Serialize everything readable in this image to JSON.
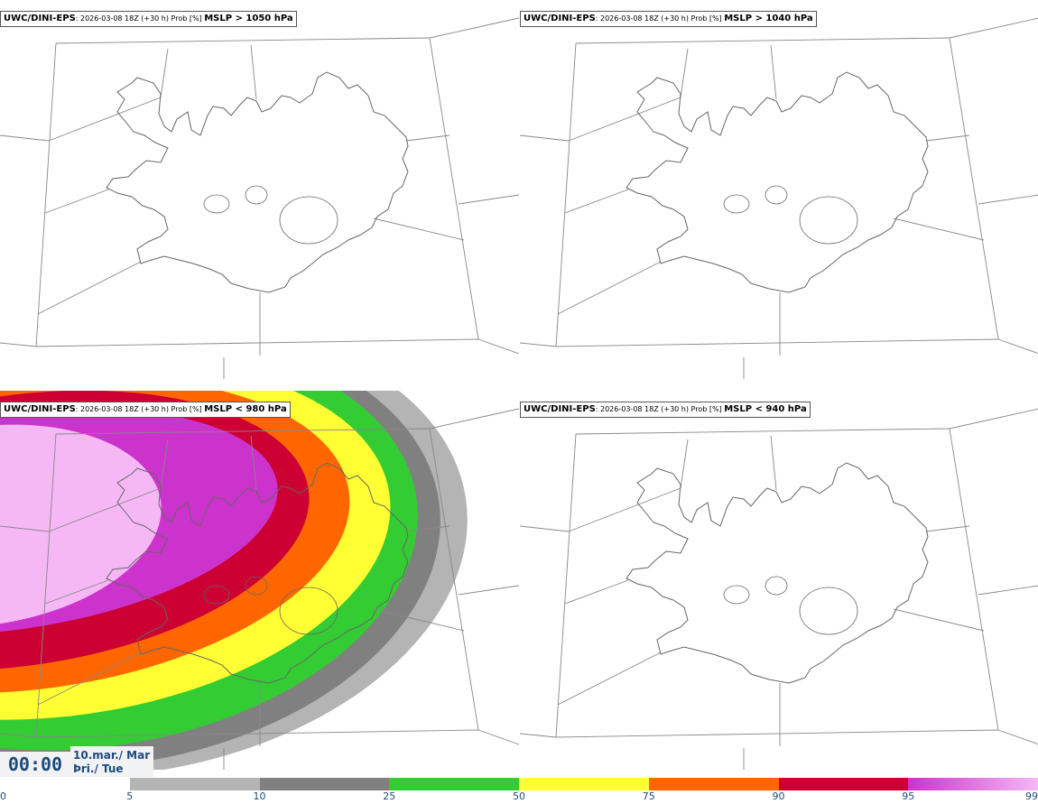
{
  "panels": [
    {
      "model": "UWC/DINI-EPS",
      "run": ": 2026-03-08 18Z (+30 h) Prob [%] ",
      "variable": "MSLP > 1050 hPa"
    },
    {
      "model": "UWC/DINI-EPS",
      "run": ": 2026-03-08 18Z (+30 h) Prob [%] ",
      "variable": "MSLP > 1040 hPa"
    },
    {
      "model": "UWC/DINI-EPS",
      "run": ": 2026-03-08 18Z (+30 h) Prob [%] ",
      "variable": "MSLP < 980 hPa"
    },
    {
      "model": "UWC/DINI-EPS",
      "run": ": 2026-03-08 18Z (+30 h) Prob [%] ",
      "variable": "MSLP < 940 hPa"
    }
  ],
  "valid_time": {
    "time": "00:00",
    "date_line1": "10.mar./ Mar",
    "date_line2": "Þri./ Tue"
  },
  "colorbar": {
    "ticks": [
      "0",
      "5",
      "10",
      "25",
      "50",
      "75",
      "90",
      "95",
      "99"
    ],
    "colors": [
      "#ffffff",
      "#b4b4b4",
      "#808080",
      "#33cc33",
      "#ffff33",
      "#ff6600",
      "#cc0033",
      "#cc33cc",
      "#f5b8f5"
    ]
  },
  "map_colors": {
    "coast": "#666666",
    "grid": "#888888",
    "prob_5": "#b4b4b4",
    "prob_10": "#808080",
    "prob_25": "#33cc33",
    "prob_50": "#ffff33",
    "prob_75": "#ff6600",
    "prob_90": "#cc0033",
    "prob_95": "#cc33cc",
    "prob_99": "#f5b8f5"
  }
}
